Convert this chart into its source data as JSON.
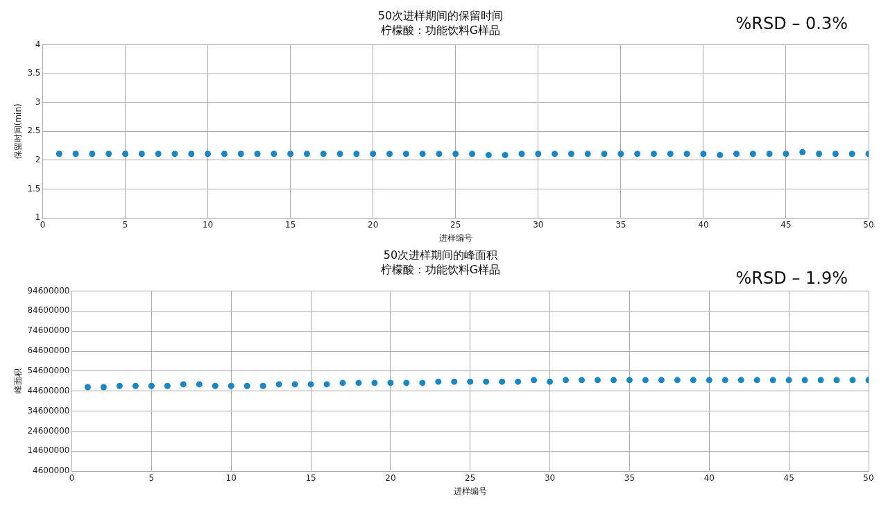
{
  "chart_data": [
    {
      "type": "scatter",
      "title": "50次进样期间的保留时间",
      "subtitle": "柠檬酸：功能饮料G样品",
      "xlabel": "进样编号",
      "ylabel": "保留时间(min)",
      "annotations": [
        "%RSD – 0.3%"
      ],
      "x": [
        1,
        2,
        3,
        4,
        5,
        6,
        7,
        8,
        9,
        10,
        11,
        12,
        13,
        14,
        15,
        16,
        17,
        18,
        19,
        20,
        21,
        22,
        23,
        24,
        25,
        26,
        27,
        28,
        29,
        30,
        31,
        32,
        33,
        34,
        35,
        36,
        37,
        38,
        39,
        40,
        41,
        42,
        43,
        44,
        45,
        46,
        47,
        48,
        49,
        50
      ],
      "series": [
        {
          "color": "#1a87c4",
          "values": [
            2.11,
            2.11,
            2.11,
            2.11,
            2.11,
            2.11,
            2.11,
            2.11,
            2.11,
            2.11,
            2.11,
            2.11,
            2.11,
            2.11,
            2.11,
            2.11,
            2.11,
            2.11,
            2.11,
            2.11,
            2.11,
            2.11,
            2.11,
            2.11,
            2.11,
            2.11,
            2.09,
            2.09,
            2.11,
            2.11,
            2.11,
            2.11,
            2.11,
            2.11,
            2.11,
            2.11,
            2.11,
            2.11,
            2.11,
            2.11,
            2.09,
            2.11,
            2.11,
            2.11,
            2.11,
            2.14,
            2.11,
            2.11,
            2.11,
            2.11
          ]
        }
      ],
      "xlim": [
        0,
        50
      ],
      "xticks": [
        0,
        5,
        10,
        15,
        20,
        25,
        30,
        35,
        40,
        45,
        50
      ],
      "ylim": [
        1,
        4
      ],
      "yticks": [
        1,
        1.5,
        2,
        2.5,
        3,
        3.5,
        4
      ],
      "grid": true,
      "legend": false,
      "marker": "circle"
    },
    {
      "type": "scatter",
      "title": "50次进样期间的峰面积",
      "subtitle": "柠檬酸：功能饮料G样品",
      "xlabel": "进样编号",
      "ylabel": "峰面积",
      "annotations": [
        "%RSD – 1.9%"
      ],
      "x": [
        1,
        2,
        3,
        4,
        5,
        6,
        7,
        8,
        9,
        10,
        11,
        12,
        13,
        14,
        15,
        16,
        17,
        18,
        19,
        20,
        21,
        22,
        23,
        24,
        25,
        26,
        27,
        28,
        29,
        30,
        31,
        32,
        33,
        34,
        35,
        36,
        37,
        38,
        39,
        40,
        41,
        42,
        43,
        44,
        45,
        46,
        47,
        48,
        49,
        50
      ],
      "series": [
        {
          "color": "#1a87c4",
          "values": [
            46600000,
            46600000,
            47200000,
            47200000,
            47200000,
            47200000,
            48000000,
            48000000,
            47200000,
            47200000,
            47200000,
            47200000,
            48000000,
            48000000,
            48000000,
            48000000,
            48700000,
            48700000,
            48700000,
            48700000,
            48700000,
            48700000,
            49300000,
            49300000,
            49300000,
            49300000,
            49300000,
            49300000,
            50100000,
            49300000,
            50100000,
            50100000,
            50100000,
            50100000,
            50100000,
            50100000,
            50100000,
            50100000,
            50100000,
            50100000,
            50100000,
            50100000,
            50100000,
            50100000,
            50100000,
            50100000,
            50100000,
            50100000,
            50100000,
            50100000
          ]
        }
      ],
      "xlim": [
        0,
        50
      ],
      "xticks": [
        0,
        5,
        10,
        15,
        20,
        25,
        30,
        35,
        40,
        45,
        50
      ],
      "ylim": [
        4600000,
        94600000
      ],
      "yticks": [
        4600000,
        14600000,
        24600000,
        34600000,
        44600000,
        54600000,
        64600000,
        74600000,
        84600000,
        94600000
      ],
      "grid": true,
      "legend": false,
      "marker": "circle"
    }
  ]
}
